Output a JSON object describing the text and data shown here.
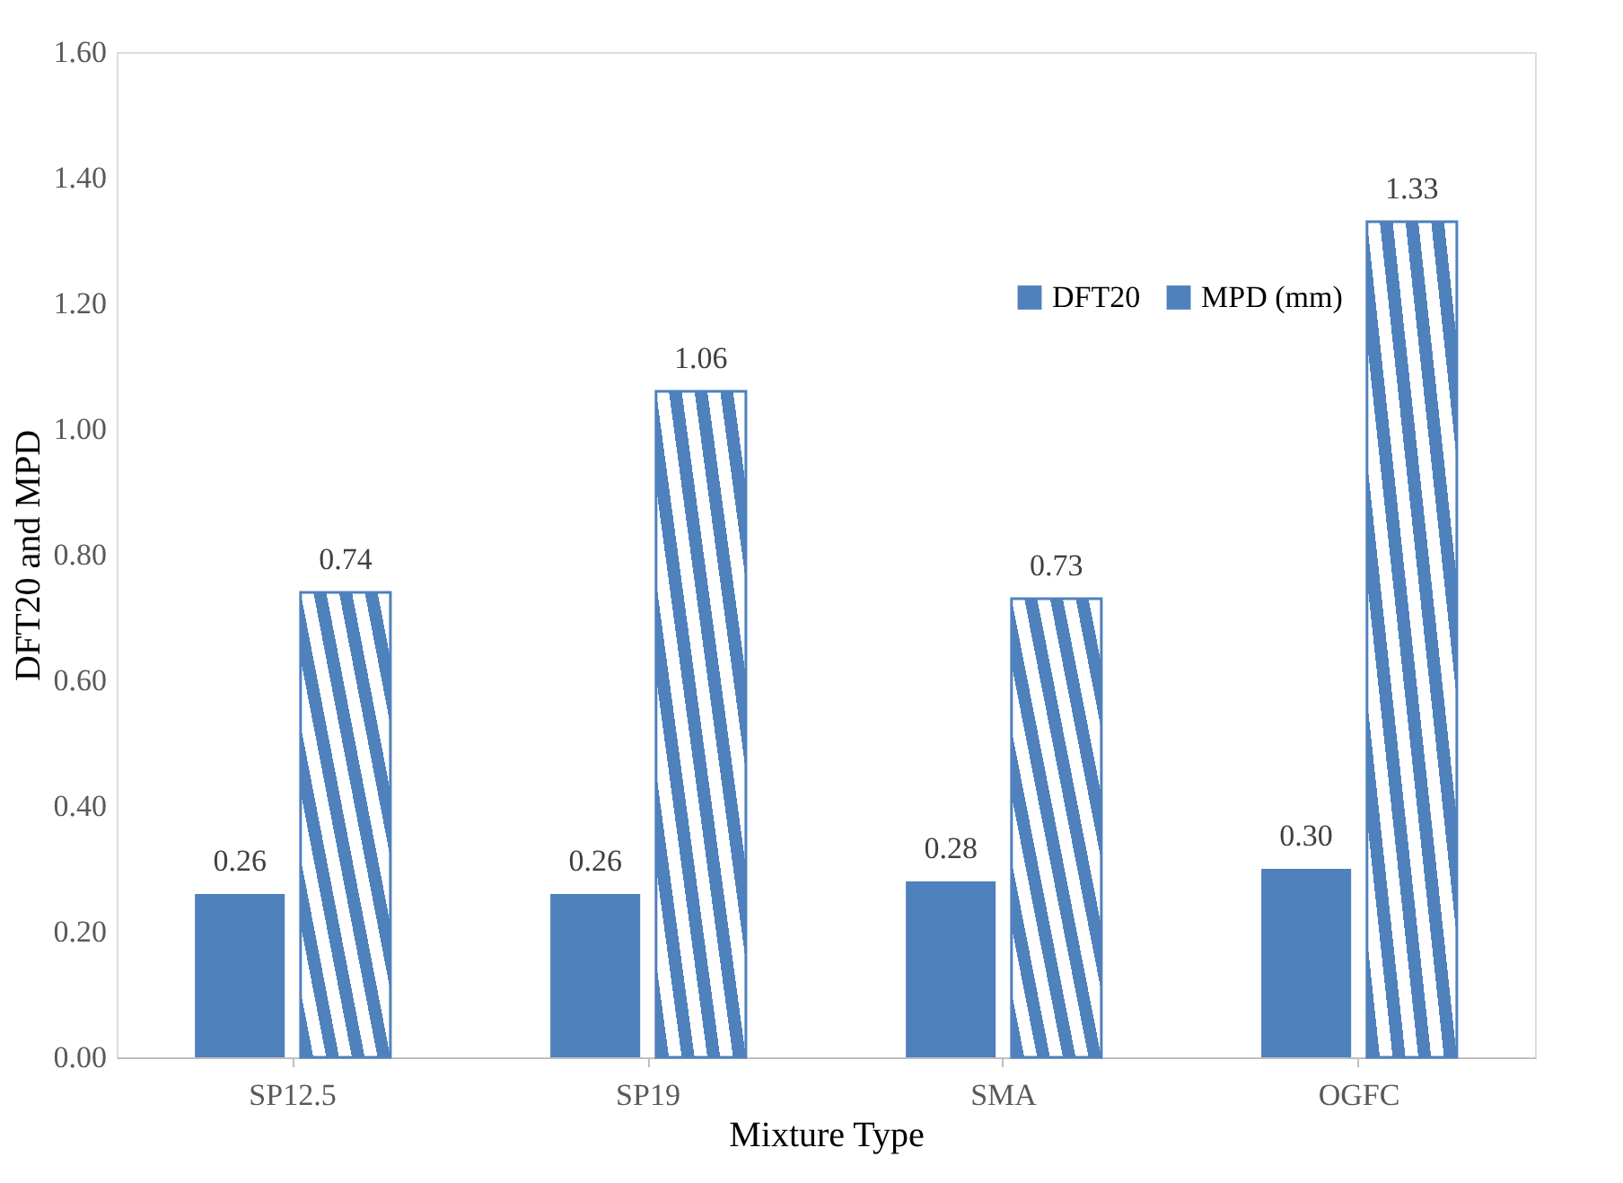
{
  "chart_data": {
    "type": "bar",
    "xlabel": "Mixture Type",
    "ylabel": "DFT20 and MPD",
    "categories": [
      "SP12.5",
      "SP19",
      "SMA",
      "OGFC"
    ],
    "series": [
      {
        "name": "DFT20",
        "color": "#4f81bd",
        "values": [
          0.26,
          0.26,
          0.28,
          0.3
        ],
        "value_labels": [
          "0.26",
          "0.26",
          "0.28",
          "0.30"
        ]
      },
      {
        "name": "MPD (mm)",
        "color": "#4f81bd",
        "values": [
          0.74,
          1.06,
          0.73,
          1.33
        ],
        "value_labels": [
          "0.74",
          "1.06",
          "0.73",
          "1.33"
        ]
      }
    ],
    "ylim": [
      0,
      1.6
    ],
    "yticks": [
      {
        "value": 0,
        "label": "0.00"
      },
      {
        "value": 0.2,
        "label": "0.20"
      },
      {
        "value": 0.4,
        "label": "0.40"
      },
      {
        "value": 0.6,
        "label": "0.60"
      },
      {
        "value": 0.8,
        "label": "0.80"
      },
      {
        "value": 1.0,
        "label": "1.00"
      },
      {
        "value": 1.2,
        "label": "1.20"
      },
      {
        "value": 1.4,
        "label": "1.40"
      },
      {
        "value": 1.6,
        "label": "1.60"
      }
    ],
    "grid": false,
    "legend": "top right"
  }
}
